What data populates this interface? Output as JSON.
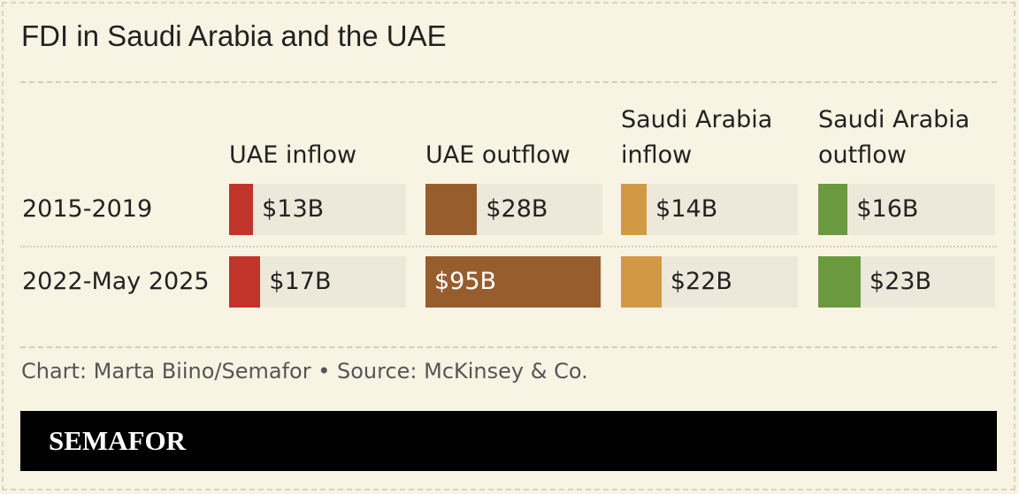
{
  "chart_data": {
    "type": "bar",
    "title": "FDI in Saudi Arabia and the UAE",
    "categories": [
      "2015-2019",
      "2022-May 2025"
    ],
    "series": [
      {
        "name": "UAE inflow",
        "color": "#c13429",
        "values": [
          13,
          17
        ],
        "value_labels": [
          "$13B",
          "$17B"
        ]
      },
      {
        "name": "UAE outflow",
        "color": "#985d2d",
        "values": [
          28,
          95
        ],
        "value_labels": [
          "$28B",
          "$95B"
        ]
      },
      {
        "name": "Saudi Arabia inflow",
        "color": "#d29945",
        "values": [
          14,
          22
        ],
        "value_labels": [
          "$14B",
          "$22B"
        ]
      },
      {
        "name": "Saudi Arabia outflow",
        "color": "#6b9a3e",
        "values": [
          16,
          23
        ],
        "value_labels": [
          "$16B",
          "$23B"
        ]
      }
    ],
    "source": "Chart: Marta Biino/Semafor • Source: McKinsey & Co.",
    "brand": "SEMAFOR"
  }
}
